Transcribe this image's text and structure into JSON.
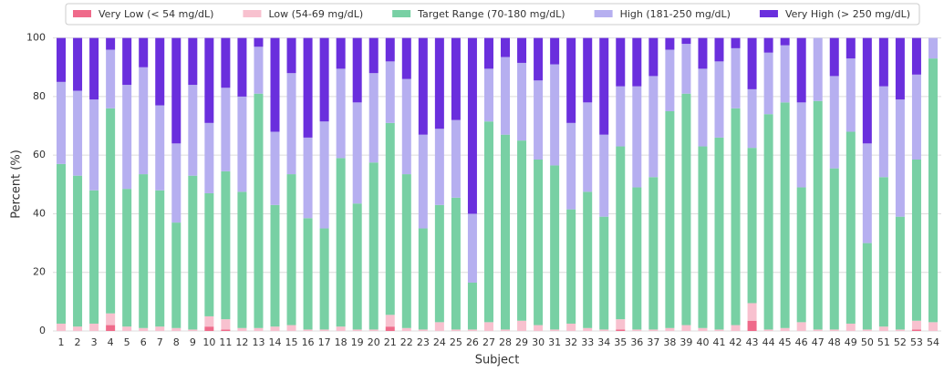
{
  "chart_data": {
    "type": "stacked_bar",
    "xlabel": "Subject",
    "ylabel": "Percent (%)",
    "categories": [
      "1",
      "2",
      "3",
      "4",
      "5",
      "6",
      "7",
      "8",
      "9",
      "10",
      "11",
      "12",
      "13",
      "14",
      "15",
      "16",
      "17",
      "18",
      "19",
      "20",
      "21",
      "22",
      "23",
      "24",
      "25",
      "26",
      "27",
      "28",
      "29",
      "30",
      "31",
      "32",
      "33",
      "34",
      "35",
      "36",
      "37",
      "38",
      "39",
      "40",
      "41",
      "42",
      "43",
      "44",
      "45",
      "46",
      "47",
      "48",
      "49",
      "50",
      "51",
      "52",
      "53",
      "54"
    ],
    "ylim": [
      0,
      103
    ],
    "yticks": [
      0,
      20,
      40,
      60,
      80,
      100
    ],
    "grid": true,
    "legend": "top",
    "series": [
      {
        "name": "Very Low (< 54 mg/dL)",
        "color": "#ef6a8a",
        "values": [
          0,
          0,
          0,
          2,
          0,
          0,
          0,
          0,
          0,
          1.5,
          0.5,
          0,
          0,
          0,
          0,
          0,
          0,
          0,
          0,
          0,
          1.5,
          0,
          0,
          0,
          0,
          0,
          0,
          0,
          0,
          0,
          0,
          0,
          0,
          0,
          0.5,
          0,
          0,
          0,
          0,
          0,
          0,
          0,
          3.5,
          0,
          0,
          0,
          0,
          0,
          0,
          0,
          0,
          0,
          0.5,
          0
        ]
      },
      {
        "name": "Low (54-69 mg/dL)",
        "color": "#f8c1cf",
        "values": [
          2.5,
          1.5,
          2.5,
          4,
          1.5,
          1,
          1.5,
          1,
          0.5,
          3.5,
          3.5,
          1,
          1,
          1.5,
          2,
          0.5,
          0.5,
          1.5,
          0.5,
          0.5,
          4,
          1,
          0.5,
          3,
          0.5,
          0.5,
          3,
          0.5,
          3.5,
          2,
          0.5,
          2.5,
          1,
          0.5,
          3.5,
          0.5,
          0.5,
          1,
          2,
          1,
          0.5,
          2,
          6,
          0.5,
          1,
          3,
          0.5,
          0.5,
          2.5,
          0.5,
          1.5,
          0.5,
          3,
          3
        ]
      },
      {
        "name": "Target Range (70-180 mg/dL)",
        "color": "#78d0a4",
        "values": [
          54.5,
          51.5,
          45.5,
          70,
          47,
          52.5,
          46.5,
          36,
          52.5,
          42,
          50.5,
          46.5,
          80,
          41.5,
          51.5,
          38,
          34.5,
          57.5,
          43,
          57,
          65.5,
          52.5,
          34.5,
          40,
          45,
          16,
          68.5,
          66.5,
          61.5,
          56.5,
          56,
          39,
          46.5,
          38.5,
          59,
          48.5,
          52,
          74,
          79,
          62,
          65.5,
          74,
          53,
          73.5,
          77,
          46,
          78,
          55,
          65.5,
          29.5,
          51,
          38.5,
          55,
          90
        ]
      },
      {
        "name": "High (181-250 mg/dL)",
        "color": "#b6aff0",
        "values": [
          28,
          29,
          31,
          20,
          35.5,
          36.5,
          29,
          27,
          31,
          24,
          28.5,
          32.5,
          16,
          25,
          34.5,
          27.5,
          36.5,
          30.5,
          34.5,
          30.5,
          21,
          32.5,
          32,
          26,
          26.5,
          23.5,
          18,
          26.5,
          26.5,
          27,
          34.5,
          29.5,
          30.5,
          28,
          20.5,
          34.5,
          34.5,
          21,
          17,
          26.5,
          26,
          20.5,
          20,
          21,
          19.5,
          29,
          21.5,
          31.5,
          25,
          34,
          31,
          40,
          29,
          7
        ]
      },
      {
        "name": "Very High (> 250 mg/dL)",
        "color": "#6a2fdd",
        "values": [
          15,
          18,
          21,
          4,
          16,
          10,
          23,
          36,
          16,
          29,
          17,
          20,
          3,
          32,
          12,
          34,
          28.5,
          10.5,
          22,
          12,
          8,
          14,
          33,
          31,
          28,
          60,
          10.5,
          6.5,
          8.5,
          14.5,
          9,
          29,
          22,
          33,
          16.5,
          16.5,
          13,
          4,
          2,
          10.5,
          8,
          3.5,
          17.5,
          5,
          2.5,
          22,
          0,
          13,
          7,
          36,
          16.5,
          21,
          12.5,
          0
        ]
      }
    ]
  }
}
